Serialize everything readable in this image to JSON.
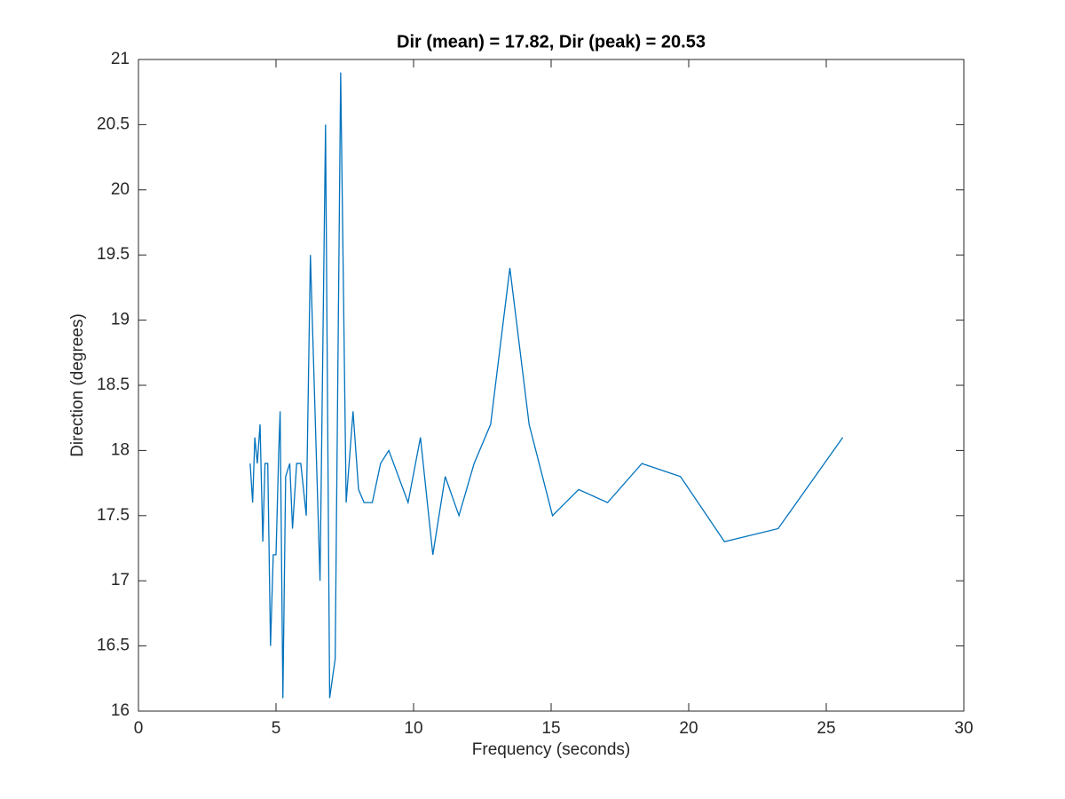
{
  "chart_data": {
    "type": "line",
    "title": "Dir (mean) = 17.82, Dir (peak) = 20.53",
    "x_label": "Frequency (seconds)",
    "y_label": "Direction (degrees)",
    "x": [
      4.06,
      4.15,
      4.23,
      4.32,
      4.42,
      4.52,
      4.6,
      4.7,
      4.8,
      4.9,
      5.0,
      5.1,
      5.15,
      5.25,
      5.35,
      5.5,
      5.6,
      5.75,
      5.9,
      6.1,
      6.25,
      6.6,
      6.8,
      6.95,
      7.15,
      7.35,
      7.55,
      7.8,
      8.0,
      8.2,
      8.5,
      8.8,
      9.1,
      9.8,
      10.25,
      10.7,
      11.15,
      11.65,
      12.2,
      12.8,
      13.5,
      14.2,
      15.05,
      16.0,
      17.05,
      18.3,
      19.7,
      21.3,
      23.25,
      25.6
    ],
    "values": [
      17.9,
      17.6,
      18.1,
      17.9,
      18.2,
      17.3,
      17.9,
      17.9,
      16.5,
      17.2,
      17.2,
      18.0,
      18.3,
      16.1,
      17.8,
      17.9,
      17.4,
      17.9,
      17.9,
      17.5,
      19.5,
      17.0,
      20.5,
      16.1,
      16.4,
      20.9,
      17.6,
      18.3,
      17.7,
      17.6,
      17.6,
      17.9,
      18.0,
      17.6,
      18.1,
      17.2,
      17.8,
      17.5,
      17.9,
      18.2,
      19.4,
      18.2,
      17.5,
      17.7,
      17.6,
      17.9,
      17.8,
      17.3,
      17.4,
      18.1
    ],
    "color": "#0072bd",
    "xlim": [
      0,
      30
    ],
    "xticks": [
      0,
      5,
      10,
      15,
      20,
      25,
      30
    ],
    "ylim": [
      16,
      21
    ],
    "yticks": [
      16,
      16.5,
      17,
      17.5,
      18,
      18.5,
      19,
      19.5,
      20,
      20.5,
      21
    ],
    "grid": false
  }
}
